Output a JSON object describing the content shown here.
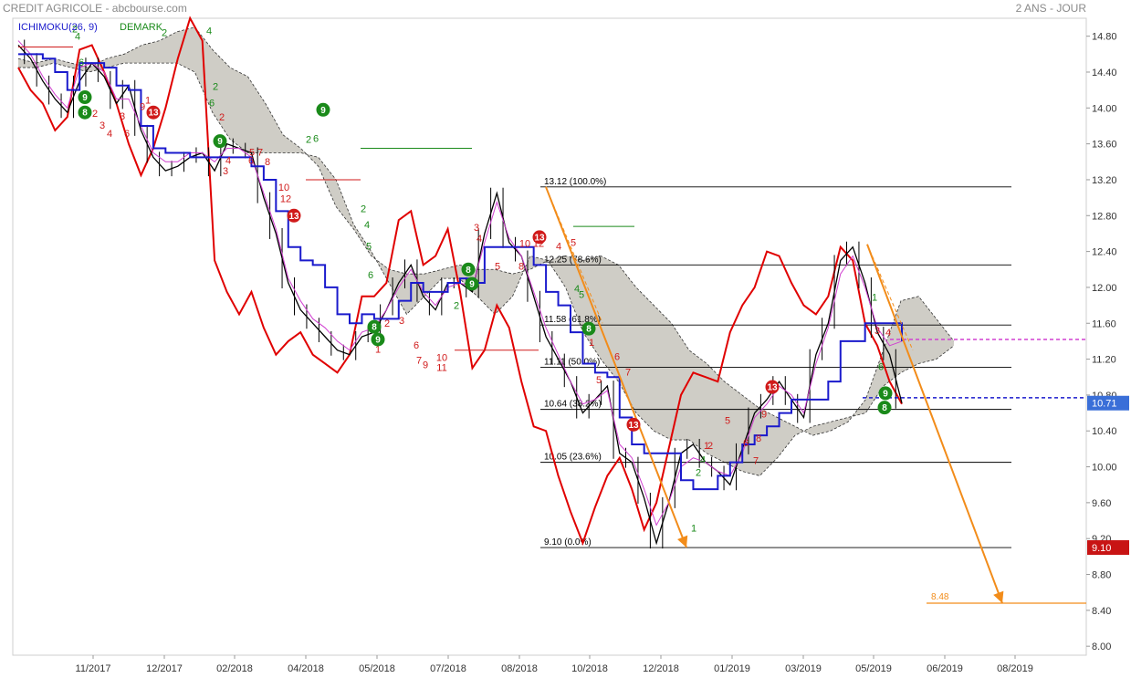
{
  "header": {
    "instrument": "CREDIT AGRICOLE - abcbourse.com",
    "period": "2 ANS - JOUR"
  },
  "legend": {
    "ichimoku": "ICHIMOKU(26, 9)",
    "demark": "DEMARK"
  },
  "colors": {
    "price": "#000000",
    "kijun": "#1a1acc",
    "tenkan": "#d040d0",
    "momentum": "#e00000",
    "cloud": "#cfcdc6",
    "fib": "#000000",
    "projection": "#f28c1a",
    "badge_green": "#1a8a1a",
    "badge_red": "#d01a1a",
    "last_price_box": "#3a6fd8",
    "low_price_box": "#c81414"
  },
  "chart_data": {
    "type": "line",
    "x_axis": {
      "tick_labels": [
        "11/2017",
        "12/2017",
        "02/2018",
        "04/2018",
        "05/2018",
        "07/2018",
        "08/2018",
        "10/2018",
        "12/2018",
        "01/2019",
        "03/2019",
        "05/2019",
        "06/2019",
        "08/2019"
      ]
    },
    "y_axis": {
      "ylim": [
        7.9,
        15.0
      ],
      "ticks": [
        "14.80",
        "14.40",
        "14.00",
        "13.60",
        "13.20",
        "12.80",
        "12.40",
        "12.00",
        "11.60",
        "11.20",
        "10.80",
        "10.40",
        "10.00",
        "9.60",
        "9.20",
        "8.80",
        "8.40",
        "8.00"
      ]
    },
    "series": [
      {
        "name": "",
        "role": "price",
        "values": [
          14.7,
          14.55,
          14.3,
          14.1,
          13.95,
          14.3,
          14.5,
          14.35,
          14.05,
          14.25,
          13.75,
          13.45,
          13.3,
          13.35,
          13.45,
          13.5,
          13.3,
          13.6,
          13.55,
          13.5,
          13.0,
          12.6,
          12.05,
          11.75,
          11.6,
          11.45,
          11.3,
          11.25,
          11.45,
          11.5,
          11.75,
          12.05,
          12.25,
          11.9,
          11.75,
          12.05,
          12.05,
          11.95,
          12.6,
          13.05,
          12.5,
          12.35,
          11.9,
          11.45,
          11.2,
          10.95,
          10.6,
          10.75,
          10.9,
          10.15,
          10.05,
          9.65,
          9.15,
          9.6,
          10.15,
          10.25,
          10.05,
          9.95,
          9.8,
          10.2,
          10.6,
          10.75,
          10.95,
          10.75,
          10.55,
          11.25,
          11.6,
          12.3,
          12.45,
          12.05,
          11.5,
          11.25,
          10.71
        ]
      },
      {
        "name": "",
        "role": "kijun",
        "values": [
          14.6,
          14.6,
          14.55,
          14.4,
          14.2,
          14.5,
          14.5,
          14.45,
          14.25,
          14.2,
          13.8,
          13.55,
          13.5,
          13.5,
          13.45,
          13.45,
          13.45,
          13.45,
          13.45,
          13.35,
          13.2,
          12.85,
          12.45,
          12.3,
          12.25,
          12.0,
          11.7,
          11.6,
          11.7,
          11.65,
          11.65,
          11.85,
          12.05,
          11.95,
          11.95,
          12.05,
          12.1,
          12.05,
          12.45,
          12.45,
          12.45,
          12.45,
          12.25,
          11.95,
          11.8,
          11.5,
          11.15,
          11.05,
          11.0,
          10.55,
          10.25,
          10.15,
          10.15,
          10.15,
          9.85,
          9.75,
          9.75,
          9.9,
          10.05,
          10.25,
          10.35,
          10.45,
          10.6,
          10.75,
          10.75,
          10.75,
          10.95,
          11.4,
          11.4,
          11.6,
          11.6,
          11.6,
          11.4
        ]
      },
      {
        "name": "",
        "role": "tenkan",
        "values": [
          14.75,
          14.6,
          14.35,
          14.15,
          14.0,
          14.45,
          14.5,
          14.4,
          14.1,
          14.1,
          13.8,
          13.5,
          13.4,
          13.4,
          13.5,
          13.5,
          13.4,
          13.55,
          13.55,
          13.45,
          13.05,
          12.65,
          12.1,
          11.85,
          11.65,
          11.55,
          11.4,
          11.3,
          11.5,
          11.55,
          11.75,
          12.0,
          12.2,
          11.95,
          11.8,
          12.0,
          12.05,
          12.0,
          12.5,
          12.95,
          12.55,
          12.35,
          11.95,
          11.55,
          11.25,
          10.95,
          10.7,
          10.75,
          10.85,
          10.25,
          10.1,
          9.75,
          9.35,
          9.6,
          10.0,
          10.1,
          10.05,
          9.95,
          9.9,
          10.15,
          10.55,
          10.7,
          10.9,
          10.8,
          10.6,
          11.15,
          11.55,
          12.15,
          12.35,
          12.0,
          11.55,
          11.35,
          11.4
        ]
      },
      {
        "name": "",
        "role": "momentum",
        "values": [
          14.45,
          14.2,
          14.05,
          13.75,
          13.9,
          14.65,
          14.7,
          14.4,
          14.05,
          13.6,
          13.25,
          13.55,
          14.0,
          14.55,
          15.0,
          14.75,
          12.3,
          11.95,
          11.7,
          11.95,
          11.55,
          11.25,
          11.4,
          11.5,
          11.25,
          11.15,
          11.05,
          11.25,
          11.9,
          11.9,
          12.05,
          12.75,
          12.85,
          12.25,
          12.35,
          12.65,
          11.95,
          11.1,
          11.3,
          11.8,
          11.55,
          10.95,
          10.45,
          10.4,
          9.9,
          9.5,
          9.15,
          9.55,
          9.9,
          10.1,
          9.75,
          9.3,
          9.6,
          10.2,
          10.8,
          11.05,
          11.0,
          10.95,
          11.5,
          11.8,
          12.0,
          12.4,
          12.35,
          12.05,
          11.8,
          11.7,
          11.9,
          12.45,
          12.3,
          11.6,
          11.35,
          10.95,
          10.7
        ]
      },
      {
        "name": "",
        "role": "cloud_top",
        "values": [
          14.55,
          14.5,
          14.55,
          14.5,
          14.45,
          14.55,
          14.6,
          14.7,
          14.75,
          14.85,
          14.9,
          14.65,
          14.45,
          14.35,
          14.05,
          13.7,
          13.55,
          13.35,
          12.9,
          12.65,
          12.35,
          12.2,
          12.15,
          12.15,
          12.2,
          12.25,
          12.2,
          12.2,
          12.15,
          12.2,
          12.3,
          12.35,
          12.3,
          12.35,
          12.25,
          12.0,
          11.8,
          11.6,
          11.3,
          11.15,
          10.95,
          10.8,
          10.65,
          10.55,
          10.45,
          10.35,
          10.4,
          10.5,
          10.75,
          11.3,
          11.85,
          11.9,
          11.65,
          11.4
        ]
      },
      {
        "name": "",
        "role": "cloud_bottom",
        "values": [
          14.45,
          14.45,
          14.5,
          14.45,
          14.4,
          14.45,
          14.5,
          14.5,
          14.5,
          14.5,
          14.4,
          13.95,
          13.65,
          13.5,
          13.5,
          13.5,
          13.5,
          13.45,
          13.2,
          12.7,
          12.4,
          12.05,
          11.7,
          11.9,
          12.1,
          12.1,
          11.9,
          11.7,
          11.9,
          12.35,
          12.3,
          12.0,
          11.5,
          11.2,
          10.95,
          10.6,
          10.4,
          10.3,
          10.3,
          10.15,
          10.05,
          9.95,
          9.9,
          10.1,
          10.35,
          10.45,
          10.5,
          10.55,
          10.6,
          10.9,
          11.05,
          11.15,
          11.2,
          11.35
        ]
      }
    ],
    "fibonacci": [
      {
        "label": "13.12  (100.0%)",
        "value": 13.12
      },
      {
        "label": "12.25  (78.6%)",
        "value": 12.25
      },
      {
        "label": "11.58  (61.8%)",
        "value": 11.58
      },
      {
        "label": "11.11  (50.0%)",
        "value": 11.11
      },
      {
        "label": "10.64  (38.2%)",
        "value": 10.64
      },
      {
        "label": "10.05  (23.6%)",
        "value": 10.05
      },
      {
        "label": "9.10  (0.0%)",
        "value": 9.1
      }
    ],
    "projection": {
      "label": "8.48",
      "value": 8.48
    },
    "markers": {
      "resistance": {
        "value": 11.42
      },
      "support": {
        "value": 10.77
      }
    },
    "price_boxes": [
      {
        "label": "10.71",
        "value": 10.71,
        "role": "last"
      },
      {
        "label": "9.10",
        "value": 9.1,
        "role": "low"
      }
    ],
    "td_badges": [
      {
        "label": "8",
        "color": "green",
        "x": 93,
        "y": 13.95
      },
      {
        "label": "9",
        "color": "green",
        "x": 93,
        "y": 14.12
      },
      {
        "label": "13",
        "color": "red",
        "x": 168,
        "y": 13.95
      },
      {
        "label": "9",
        "color": "green",
        "x": 241,
        "y": 13.63
      },
      {
        "label": "9",
        "color": "green",
        "x": 354,
        "y": 13.98
      },
      {
        "label": "13",
        "color": "red",
        "x": 322,
        "y": 12.8
      },
      {
        "label": "8",
        "color": "green",
        "x": 410,
        "y": 11.56
      },
      {
        "label": "9",
        "color": "green",
        "x": 414,
        "y": 11.42
      },
      {
        "label": "8",
        "color": "green",
        "x": 513,
        "y": 12.2
      },
      {
        "label": "9",
        "color": "green",
        "x": 517,
        "y": 12.04
      },
      {
        "label": "13",
        "color": "red",
        "x": 591,
        "y": 12.56
      },
      {
        "label": "8",
        "color": "green",
        "x": 645,
        "y": 11.54
      },
      {
        "label": "13",
        "color": "red",
        "x": 694,
        "y": 10.47
      },
      {
        "label": "13",
        "color": "red",
        "x": 846,
        "y": 10.89
      },
      {
        "label": "8",
        "color": "green",
        "x": 969,
        "y": 10.66
      },
      {
        "label": "9",
        "color": "green",
        "x": 970,
        "y": 10.82
      }
    ],
    "td_numbers": [
      {
        "label": "6",
        "color": "green",
        "x": 89,
        "y": 14.47
      },
      {
        "label": "2",
        "color": "green",
        "x": 82,
        "y": 14.84
      },
      {
        "label": "4",
        "color": "green",
        "x": 85,
        "y": 14.76
      },
      {
        "label": "3",
        "color": "red",
        "x": 112,
        "y": 13.77
      },
      {
        "label": "4",
        "color": "red",
        "x": 120,
        "y": 13.68
      },
      {
        "label": "6",
        "color": "red",
        "x": 139,
        "y": 13.68
      },
      {
        "label": "9",
        "color": "red",
        "x": 156,
        "y": 13.98
      },
      {
        "label": "1",
        "color": "red",
        "x": 162,
        "y": 14.05
      },
      {
        "label": "2",
        "color": "red",
        "x": 104,
        "y": 13.9
      },
      {
        "label": "3",
        "color": "red",
        "x": 134,
        "y": 13.87
      },
      {
        "label": "2",
        "color": "green",
        "x": 180,
        "y": 14.8
      },
      {
        "label": "4",
        "color": "green",
        "x": 229,
        "y": 14.82
      },
      {
        "label": "2",
        "color": "green",
        "x": 236,
        "y": 14.2
      },
      {
        "label": "6",
        "color": "green",
        "x": 232,
        "y": 14.02
      },
      {
        "label": "2",
        "color": "red",
        "x": 243,
        "y": 13.86
      },
      {
        "label": "3",
        "color": "red",
        "x": 247,
        "y": 13.26
      },
      {
        "label": "4",
        "color": "red",
        "x": 250,
        "y": 13.38
      },
      {
        "label": "5",
        "color": "red",
        "x": 276,
        "y": 13.47
      },
      {
        "label": "6",
        "color": "red",
        "x": 275,
        "y": 13.38
      },
      {
        "label": "7",
        "color": "red",
        "x": 285,
        "y": 13.47
      },
      {
        "label": "8",
        "color": "red",
        "x": 293,
        "y": 13.36
      },
      {
        "label": "10",
        "color": "red",
        "x": 311,
        "y": 13.08
      },
      {
        "label": "12",
        "color": "red",
        "x": 313,
        "y": 12.95
      },
      {
        "label": "1",
        "color": "red",
        "x": 355,
        "y": 13.96
      },
      {
        "label": "2",
        "color": "green",
        "x": 338,
        "y": 13.61
      },
      {
        "label": "6",
        "color": "green",
        "x": 346,
        "y": 13.62
      },
      {
        "label": "2",
        "color": "green",
        "x": 398,
        "y": 12.84
      },
      {
        "label": "4",
        "color": "green",
        "x": 402,
        "y": 12.66
      },
      {
        "label": "5",
        "color": "green",
        "x": 404,
        "y": 12.42
      },
      {
        "label": "6",
        "color": "green",
        "x": 406,
        "y": 12.1
      },
      {
        "label": "2",
        "color": "red",
        "x": 424,
        "y": 11.56
      },
      {
        "label": "1",
        "color": "red",
        "x": 414,
        "y": 11.27
      },
      {
        "label": "3",
        "color": "red",
        "x": 440,
        "y": 11.59
      },
      {
        "label": "6",
        "color": "red",
        "x": 456,
        "y": 11.32
      },
      {
        "label": "7",
        "color": "red",
        "x": 459,
        "y": 11.15
      },
      {
        "label": "9",
        "color": "red",
        "x": 466,
        "y": 11.1
      },
      {
        "label": "10",
        "color": "red",
        "x": 484,
        "y": 11.18
      },
      {
        "label": "11",
        "color": "red",
        "x": 484,
        "y": 11.07
      },
      {
        "label": "2",
        "color": "green",
        "x": 500,
        "y": 11.76
      },
      {
        "label": "3",
        "color": "red",
        "x": 522,
        "y": 12.63
      },
      {
        "label": "4",
        "color": "red",
        "x": 525,
        "y": 12.51
      },
      {
        "label": "5",
        "color": "red",
        "x": 545,
        "y": 12.2
      },
      {
        "label": "8",
        "color": "red",
        "x": 571,
        "y": 12.2
      },
      {
        "label": "10",
        "color": "red",
        "x": 575,
        "y": 12.45
      },
      {
        "label": "12",
        "color": "red",
        "x": 590,
        "y": 12.45
      },
      {
        "label": "4",
        "color": "red",
        "x": 612,
        "y": 12.42
      },
      {
        "label": "5",
        "color": "red",
        "x": 628,
        "y": 12.46
      },
      {
        "label": "4",
        "color": "green",
        "x": 632,
        "y": 11.95
      },
      {
        "label": "5",
        "color": "green",
        "x": 637,
        "y": 11.88
      },
      {
        "label": "1",
        "color": "red",
        "x": 648,
        "y": 11.35
      },
      {
        "label": "5",
        "color": "red",
        "x": 656,
        "y": 10.93
      },
      {
        "label": "6",
        "color": "red",
        "x": 676,
        "y": 11.19
      },
      {
        "label": "7",
        "color": "red",
        "x": 688,
        "y": 11.02
      },
      {
        "label": "1",
        "color": "red",
        "x": 774,
        "y": 10.2
      },
      {
        "label": "2",
        "color": "red",
        "x": 778,
        "y": 10.2
      },
      {
        "label": "5",
        "color": "red",
        "x": 797,
        "y": 10.48
      },
      {
        "label": "6",
        "color": "red",
        "x": 817,
        "y": 10.23
      },
      {
        "label": "8",
        "color": "red",
        "x": 831,
        "y": 10.28
      },
      {
        "label": "9",
        "color": "red",
        "x": 837,
        "y": 10.55
      },
      {
        "label": "7",
        "color": "red",
        "x": 828,
        "y": 10.03
      },
      {
        "label": "2",
        "color": "green",
        "x": 765,
        "y": 9.9
      },
      {
        "label": "4",
        "color": "green",
        "x": 770,
        "y": 10.04
      },
      {
        "label": "1",
        "color": "green",
        "x": 760,
        "y": 9.28
      },
      {
        "label": "3",
        "color": "red",
        "x": 961,
        "y": 11.48
      },
      {
        "label": "4",
        "color": "red",
        "x": 973,
        "y": 11.46
      },
      {
        "label": "6",
        "color": "green",
        "x": 965,
        "y": 11.08
      },
      {
        "label": "1",
        "color": "green",
        "x": 958,
        "y": 11.85
      }
    ],
    "projection_line": {
      "from": {
        "x": 950,
        "y": 12.48
      },
      "to": {
        "x": 1098,
        "y": 8.48
      }
    },
    "decline_line": {
      "from": {
        "x": 598,
        "y": 13.12
      },
      "to": {
        "x": 752,
        "y": 9.1
      }
    }
  }
}
